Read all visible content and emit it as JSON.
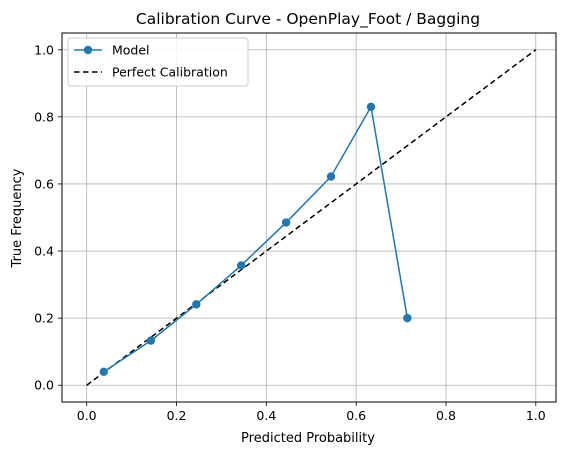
{
  "chart_data": {
    "type": "line",
    "title": "Calibration Curve - OpenPlay_Foot / Bagging",
    "xlabel": "Predicted Probability",
    "ylabel": "True Frequency",
    "xlim": [
      -0.055,
      1.045
    ],
    "ylim": [
      -0.05,
      1.05
    ],
    "xticks": [
      "0.0",
      "0.2",
      "0.4",
      "0.6",
      "0.8",
      "1.0"
    ],
    "yticks": [
      "0.0",
      "0.2",
      "0.4",
      "0.6",
      "0.8",
      "1.0"
    ],
    "grid": true,
    "legend_position": "top-left",
    "series": [
      {
        "name": "Model",
        "style": "solid-with-markers",
        "color": "#1f77b4",
        "x": [
          0.038,
          0.143,
          0.244,
          0.344,
          0.444,
          0.544,
          0.633,
          0.714
        ],
        "y": [
          0.04,
          0.133,
          0.241,
          0.357,
          0.485,
          0.622,
          0.83,
          0.2
        ]
      },
      {
        "name": "Perfect Calibration",
        "style": "dashed",
        "color": "#000000",
        "x": [
          0.0,
          1.0
        ],
        "y": [
          0.0,
          1.0
        ]
      }
    ]
  }
}
